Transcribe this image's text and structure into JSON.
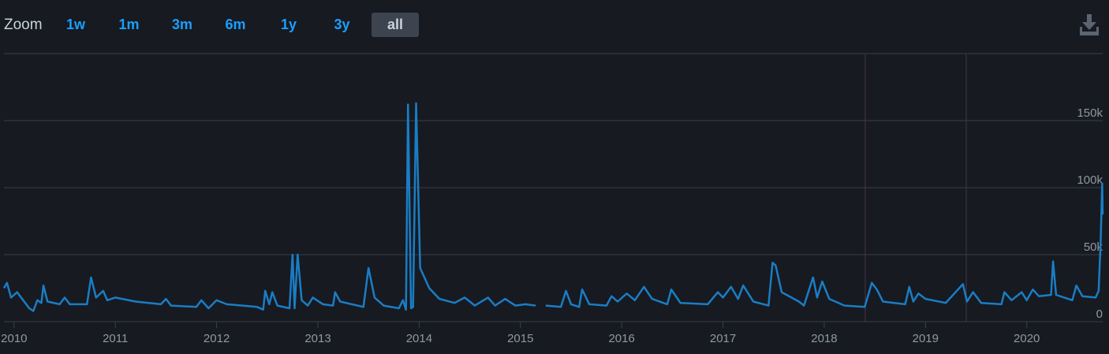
{
  "toolbar": {
    "label": "Zoom",
    "buttons": [
      "1w",
      "1m",
      "3m",
      "6m",
      "1y",
      "3y",
      "all"
    ],
    "selected_index": 6
  },
  "chart_data": {
    "type": "line",
    "color": "#1a7dc4",
    "grid": true,
    "x": [
      2009.9,
      2009.93,
      2009.97,
      2010.03,
      2010.1,
      2010.15,
      2010.19,
      2010.23,
      2010.27,
      2010.29,
      2010.33,
      2010.45,
      2010.5,
      2010.55,
      2010.72,
      2010.76,
      2010.81,
      2010.88,
      2010.92,
      2011.0,
      2011.2,
      2011.45,
      2011.5,
      2011.55,
      2011.8,
      2011.85,
      2011.92,
      2012.0,
      2012.1,
      2012.4,
      2012.46,
      2012.48,
      2012.52,
      2012.55,
      2012.6,
      2012.72,
      2012.75,
      2012.77,
      2012.8,
      2012.84,
      2012.9,
      2012.95,
      2013.05,
      2013.15,
      2013.17,
      2013.22,
      2013.45,
      2013.5,
      2013.56,
      2013.65,
      2013.8,
      2013.84,
      2013.87,
      2013.89,
      2013.92,
      2013.94,
      2013.97,
      2014.01,
      2014.1,
      2014.2,
      2014.35,
      2014.45,
      2014.55,
      2014.68,
      2014.75,
      2014.85,
      2014.95,
      2015.05,
      2015.15,
      2015.2,
      2015.25,
      2015.4,
      2015.45,
      2015.5,
      2015.58,
      2015.61,
      2015.68,
      2015.85,
      2015.9,
      2015.96,
      2016.05,
      2016.13,
      2016.22,
      2016.3,
      2016.45,
      2016.49,
      2016.58,
      2016.85,
      2016.95,
      2017.0,
      2017.08,
      2017.15,
      2017.2,
      2017.3,
      2017.45,
      2017.49,
      2017.52,
      2017.58,
      2017.75,
      2017.8,
      2017.89,
      2017.93,
      2017.98,
      2018.05,
      2018.2,
      2018.4,
      2018.47,
      2018.52,
      2018.58,
      2018.8,
      2018.84,
      2018.88,
      2018.93,
      2019.0,
      2019.2,
      2019.37,
      2019.41,
      2019.47,
      2019.55,
      2019.75,
      2019.78,
      2019.85,
      2019.95,
      2020.0,
      2020.06,
      2020.12,
      2020.24,
      2020.26,
      2020.29,
      2020.45,
      2020.49,
      2020.55,
      2020.68,
      2020.71,
      2020.73,
      2020.745,
      2020.75
    ],
    "values": [
      25000,
      29000,
      18000,
      22000,
      15000,
      10000,
      8000,
      16000,
      14000,
      27000,
      15000,
      13000,
      18000,
      13000,
      13000,
      33000,
      18000,
      23000,
      16000,
      18000,
      15000,
      13000,
      17000,
      12000,
      11000,
      16000,
      10000,
      16000,
      13000,
      11000,
      9000,
      23000,
      13000,
      22000,
      12000,
      10000,
      50000,
      10000,
      50000,
      16000,
      12000,
      18000,
      13000,
      12000,
      22000,
      15000,
      11000,
      40000,
      18000,
      12000,
      10000,
      16000,
      9000,
      162000,
      10000,
      11000,
      163000,
      40000,
      25000,
      17000,
      14000,
      18000,
      12000,
      18000,
      12000,
      17000,
      12000,
      13000,
      12000,
      null,
      12000,
      11000,
      23000,
      13000,
      11000,
      24000,
      13000,
      12000,
      19000,
      15000,
      21000,
      16000,
      26000,
      17000,
      13000,
      24000,
      14000,
      13000,
      22000,
      18000,
      26000,
      17000,
      27000,
      15000,
      12000,
      44000,
      42000,
      22000,
      15000,
      12000,
      33000,
      18000,
      30000,
      17000,
      12000,
      11000,
      29000,
      24000,
      15000,
      13000,
      26000,
      15000,
      21000,
      17000,
      14000,
      28000,
      15000,
      22000,
      14000,
      13000,
      22000,
      16000,
      22000,
      16000,
      24000,
      19000,
      20000,
      45000,
      20000,
      16000,
      27000,
      19000,
      18000,
      23000,
      60000,
      103000,
      80000
    ],
    "xlim": [
      2009.9,
      2020.75
    ],
    "xticks": [
      2010,
      2011,
      2012,
      2013,
      2014,
      2015,
      2016,
      2017,
      2018,
      2019,
      2020
    ],
    "ylim": [
      0,
      200000
    ],
    "yticks": [
      {
        "value": 0,
        "label": "0"
      },
      {
        "value": 50000,
        "label": "50k"
      },
      {
        "value": 100000,
        "label": "100k"
      },
      {
        "value": 150000,
        "label": "150k"
      }
    ]
  }
}
